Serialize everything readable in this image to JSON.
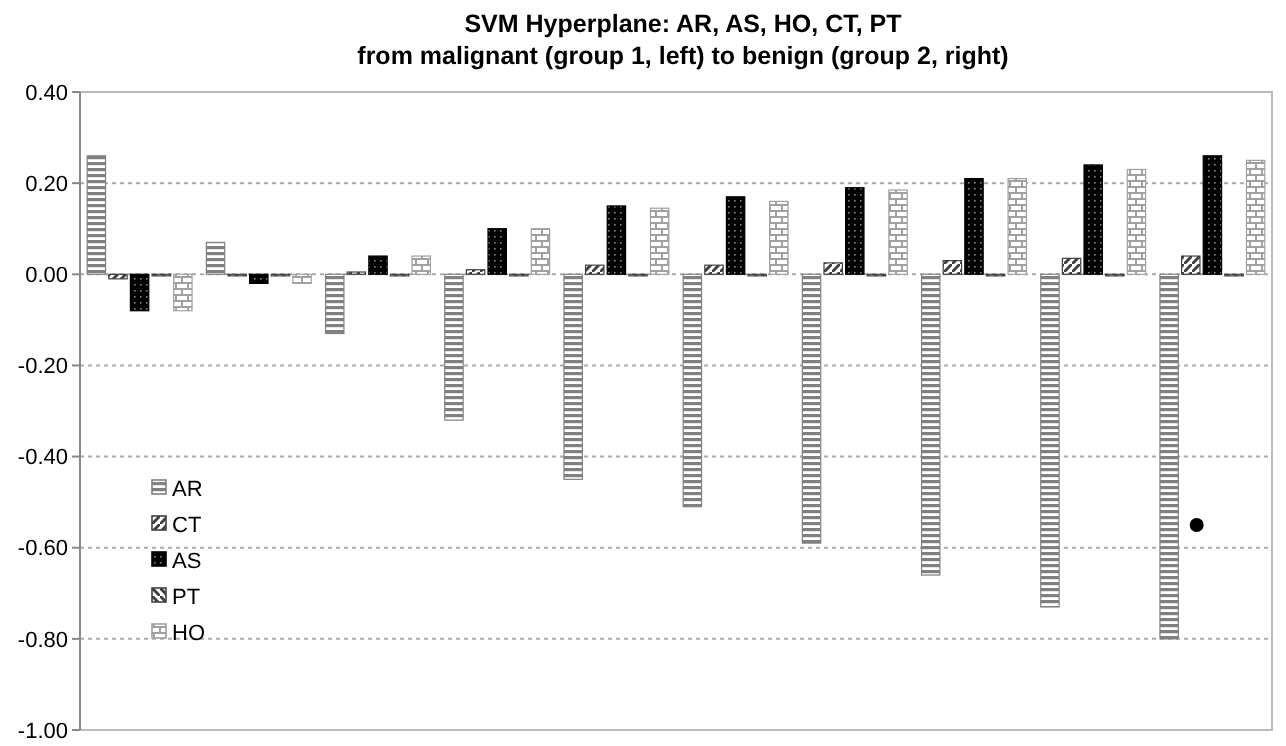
{
  "chart_data": {
    "type": "bar",
    "title": "SVM Hyperplane: AR, AS, HO, CT, PT",
    "subtitle": "from malignant (group 1, left) to benign (group 2, right)",
    "categories": [
      null,
      null,
      null,
      null,
      null,
      null,
      null,
      null,
      null,
      null
    ],
    "series": [
      {
        "name": "AR",
        "color": "#808080",
        "values": [
          0.26,
          0.07,
          -0.13,
          -0.32,
          -0.45,
          -0.51,
          -0.59,
          -0.66,
          -0.73,
          -0.8
        ]
      },
      {
        "name": "CT",
        "color": "#404040",
        "values": [
          -0.01,
          0.0,
          0.005,
          0.01,
          0.02,
          0.02,
          0.025,
          0.03,
          0.035,
          0.04
        ]
      },
      {
        "name": "AS",
        "color": "#000000",
        "values": [
          -0.08,
          -0.02,
          0.04,
          0.1,
          0.15,
          0.17,
          0.19,
          0.21,
          0.24,
          0.26
        ]
      },
      {
        "name": "PT",
        "color": "#404040",
        "values": [
          0,
          0,
          0,
          0,
          0,
          0,
          0,
          0,
          0,
          0
        ]
      },
      {
        "name": "HO",
        "color": "#a0a0a0",
        "values": [
          -0.08,
          -0.02,
          0.04,
          0.1,
          0.145,
          0.16,
          0.185,
          0.21,
          0.23,
          0.25
        ]
      },
      {
        "type": "scatter",
        "color": "#000000",
        "values": [
          null,
          null,
          null,
          null,
          null,
          null,
          null,
          null,
          null,
          -0.55
        ]
      }
    ],
    "ylim": [
      -1,
      0.4
    ],
    "yticks": [
      {
        "value": -1,
        "label": "-1.00"
      },
      {
        "value": -0.8,
        "label": "-0.80"
      },
      {
        "value": -0.6,
        "label": "-0.60"
      },
      {
        "value": -0.4,
        "label": "-0.40"
      },
      {
        "value": -0.2,
        "label": "-0.20"
      },
      {
        "value": 0,
        "label": "0.00"
      },
      {
        "value": 0.2,
        "label": "0.20"
      },
      {
        "value": 0.4,
        "label": "0.40"
      }
    ],
    "grid": "y",
    "legend": "left",
    "marker": "circle"
  }
}
